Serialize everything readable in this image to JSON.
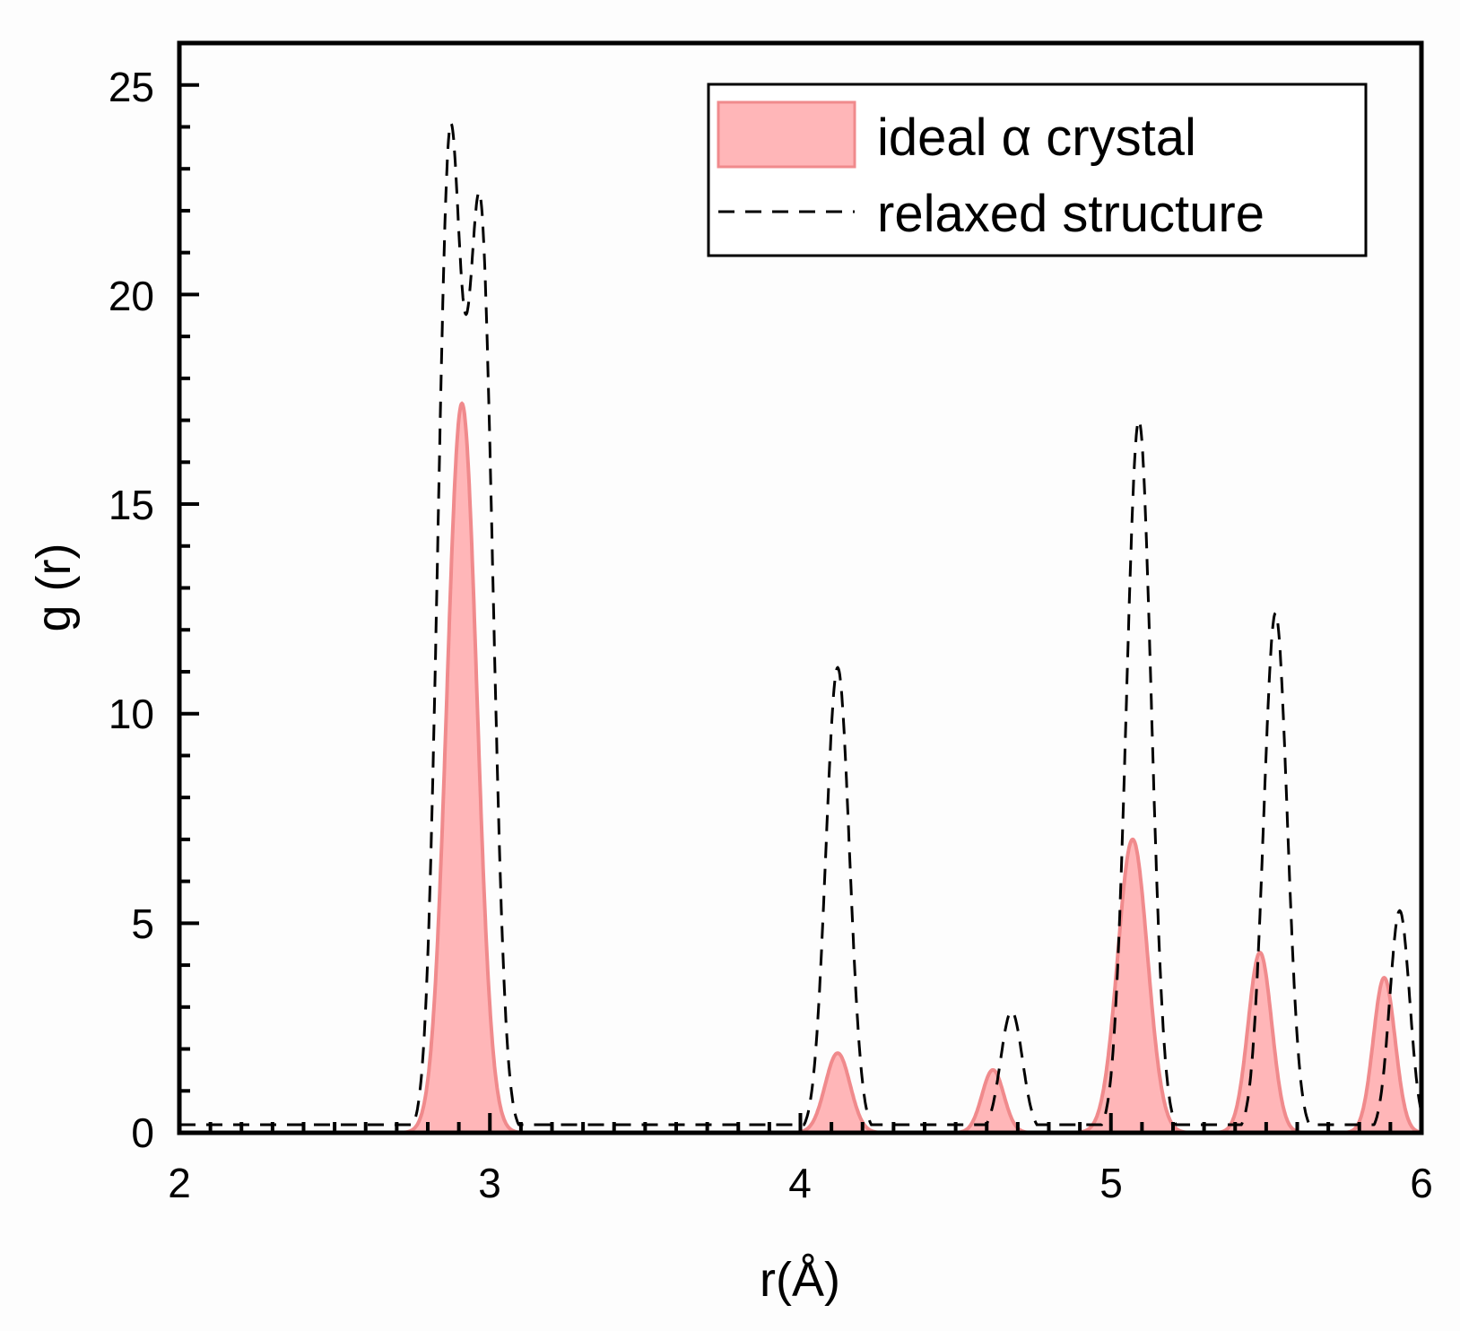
{
  "chart_data": {
    "type": "area",
    "title": "",
    "xlabel": "r(Å)",
    "ylabel": "g (r)",
    "xlim": [
      2,
      6
    ],
    "ylim": [
      0,
      26
    ],
    "xticks": [
      2,
      3,
      4,
      5,
      6
    ],
    "yticks": [
      0,
      5,
      10,
      15,
      20,
      25
    ],
    "grid": false,
    "legend_position": "top-right",
    "colors": {
      "ideal_fill": "#ffb6b8",
      "ideal_line": "#f08a8c",
      "relaxed_line": "#000000"
    },
    "series": [
      {
        "name": "ideal α crystal",
        "style": "filled",
        "peaks": [
          {
            "r": 2.91,
            "g": 17.4,
            "width": 0.048
          },
          {
            "r": 4.12,
            "g": 1.9,
            "width": 0.04
          },
          {
            "r": 4.62,
            "g": 1.5,
            "width": 0.035
          },
          {
            "r": 5.07,
            "g": 7.0,
            "width": 0.048
          },
          {
            "r": 5.48,
            "g": 4.3,
            "width": 0.038
          },
          {
            "r": 5.88,
            "g": 3.7,
            "width": 0.035
          }
        ]
      },
      {
        "name": "relaxed structure",
        "style": "dashed",
        "peaks": [
          {
            "r": 2.87,
            "g": 23.0,
            "width": 0.038
          },
          {
            "r": 2.97,
            "g": 21.6,
            "width": 0.04
          },
          {
            "r": 4.12,
            "g": 11.1,
            "width": 0.038
          },
          {
            "r": 4.68,
            "g": 2.9,
            "width": 0.035
          },
          {
            "r": 5.09,
            "g": 17.0,
            "width": 0.04
          },
          {
            "r": 5.53,
            "g": 12.4,
            "width": 0.038
          },
          {
            "r": 5.93,
            "g": 5.3,
            "width": 0.032
          }
        ]
      }
    ]
  }
}
